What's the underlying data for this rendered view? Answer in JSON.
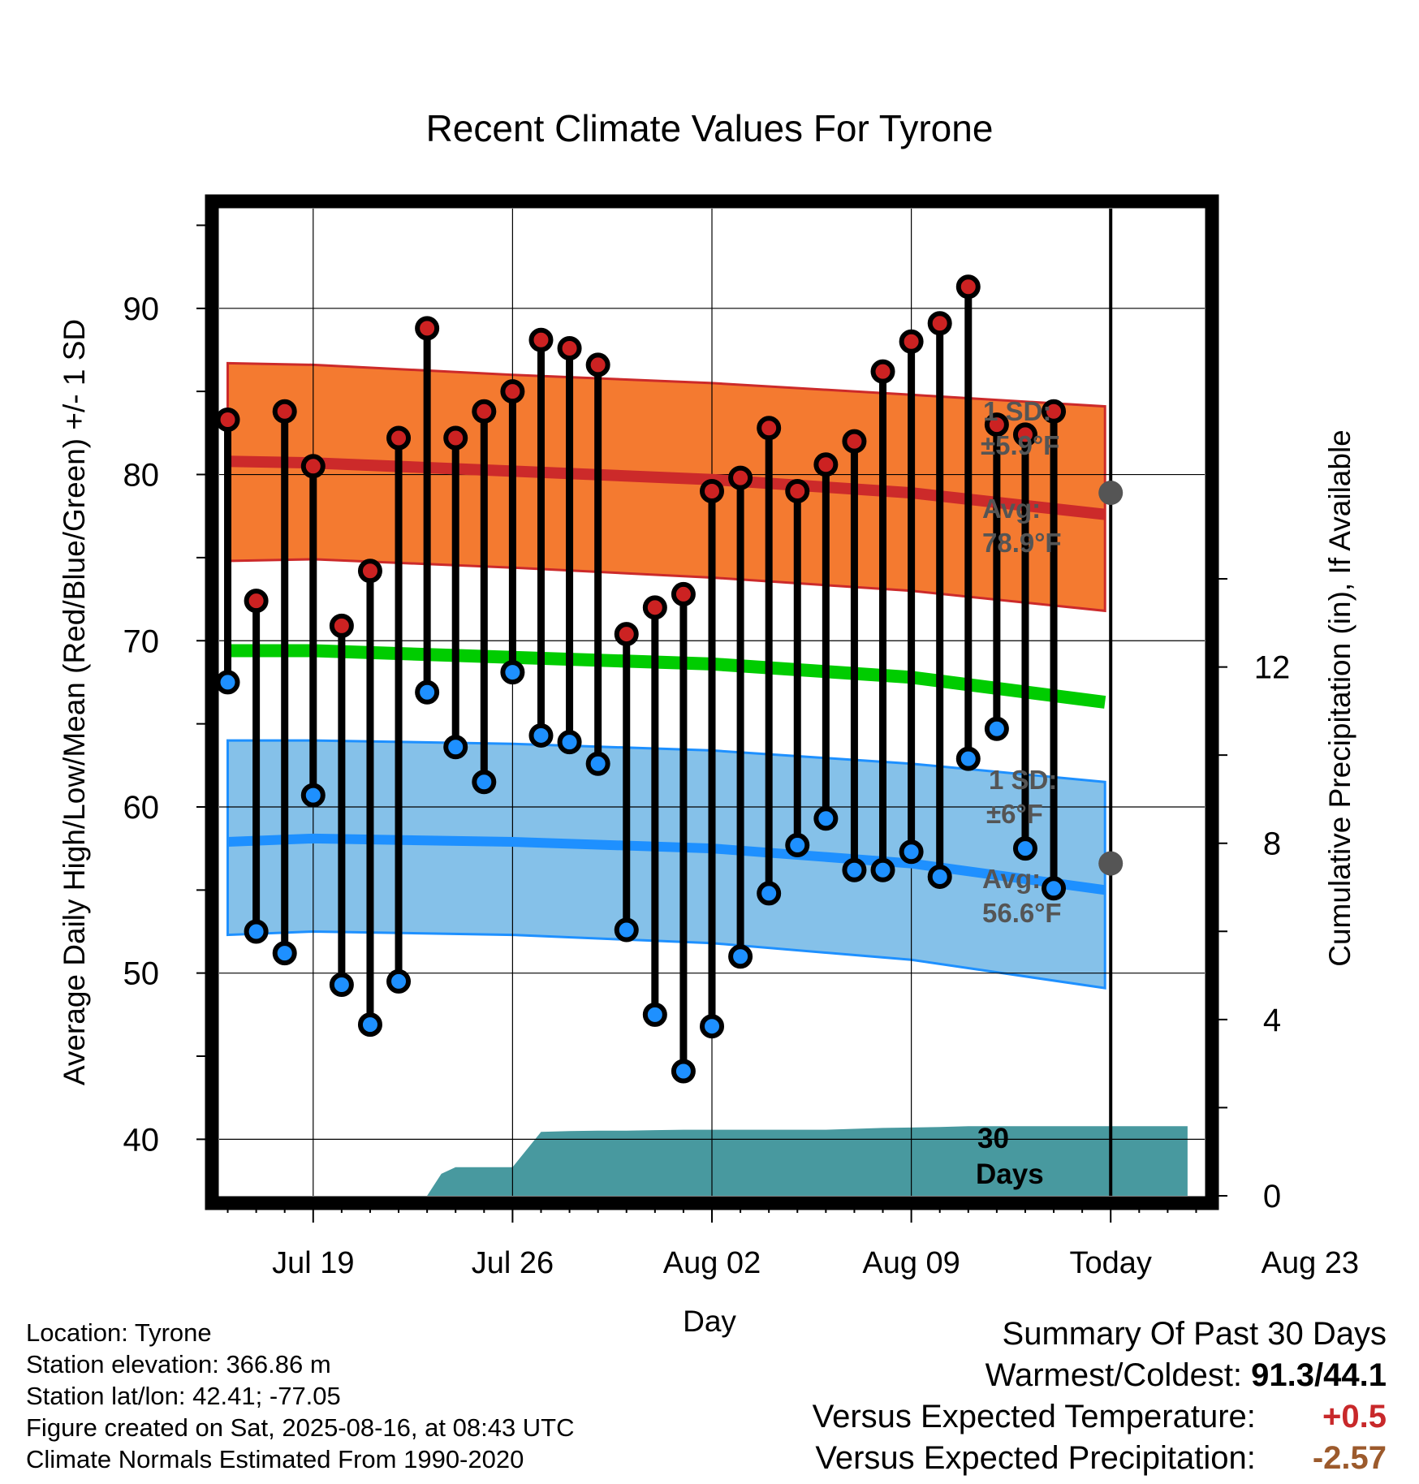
{
  "chart_data": {
    "type": "line",
    "title": "Recent Climate Values For Tyrone",
    "xlabel": "Day",
    "ylabel": "Average Daily High/Low/Mean (Red/Blue/Green) +/- 1 SD",
    "y2label": "Cumulative Precipitation (in), If Available",
    "ylim": [
      36.6,
      96
    ],
    "y_ticks": [
      40,
      50,
      60,
      70,
      80,
      90
    ],
    "y2lim": [
      0,
      22.4
    ],
    "y2_ticks": [
      0,
      4,
      8,
      12
    ],
    "x_tick_labels": [
      "Jul 19",
      "Jul 26",
      "Aug 02",
      "Aug 09",
      "Today",
      "Aug 23"
    ],
    "grid": true,
    "days_label": [
      "30",
      "Days"
    ],
    "normals": {
      "high_avg": [
        80.8,
        80.7,
        80.2,
        79.7,
        78.9,
        77.6
      ],
      "high_upper": [
        86.7,
        86.6,
        86.0,
        85.5,
        84.8,
        84.1
      ],
      "high_lower": [
        74.8,
        74.9,
        74.4,
        73.8,
        73.0,
        71.8
      ],
      "mean_avg": [
        69.4,
        69.4,
        69.0,
        68.6,
        67.8,
        66.3
      ],
      "low_avg": [
        57.9,
        58.1,
        57.9,
        57.5,
        56.6,
        55.0
      ],
      "low_upper": [
        64.0,
        64.0,
        63.8,
        63.4,
        62.6,
        61.5
      ],
      "low_lower": [
        52.3,
        52.5,
        52.3,
        51.8,
        50.8,
        49.1
      ],
      "normal_days": [
        -3,
        0,
        7,
        14,
        21,
        27.8
      ]
    },
    "annotations": {
      "high_sd": [
        "1 SD:",
        "±5.9°F"
      ],
      "high_avg": [
        "Avg:",
        "78.9°F"
      ],
      "low_sd": [
        "1 SD:",
        "±6°F"
      ],
      "low_avg": [
        "Avg:",
        "56.6°F"
      ]
    },
    "today_high_avg": 78.9,
    "today_low_avg": 56.6,
    "daily": {
      "days": [
        16,
        17,
        18,
        19,
        20,
        21,
        22,
        23,
        24,
        25,
        26,
        27,
        28,
        29,
        30,
        31,
        32,
        33,
        34,
        35,
        36,
        37,
        38,
        39,
        40,
        41,
        42,
        43,
        44,
        45
      ],
      "high": [
        83.3,
        72.4,
        83.8,
        80.5,
        70.9,
        74.2,
        82.2,
        88.8,
        82.2,
        83.8,
        85.0,
        88.1,
        87.6,
        86.6,
        70.4,
        72.0,
        72.8,
        79.0,
        79.8,
        82.8,
        79.0,
        80.6,
        82.0,
        86.2,
        88.0,
        89.1,
        91.3,
        83.0,
        82.4,
        83.8
      ],
      "low": [
        67.5,
        52.5,
        51.2,
        60.7,
        49.3,
        46.9,
        49.5,
        66.9,
        63.6,
        61.5,
        68.1,
        64.3,
        63.9,
        62.6,
        52.6,
        47.5,
        44.1,
        46.8,
        51.0,
        54.8,
        57.7,
        59.3,
        56.2,
        56.2,
        57.3,
        55.8,
        62.9,
        64.7,
        57.5,
        55.1
      ]
    },
    "precip": {
      "days": [
        22,
        23,
        23.5,
        24,
        25,
        26,
        27,
        28,
        29,
        30,
        31,
        32,
        33,
        34,
        35,
        36,
        37,
        38,
        39,
        40,
        41,
        42,
        43,
        44,
        45,
        46,
        47,
        48,
        49,
        50
      ],
      "cumulative": [
        0,
        0,
        0.5,
        0.65,
        0.65,
        0.65,
        1.45,
        1.47,
        1.48,
        1.48,
        1.49,
        1.5,
        1.5,
        1.5,
        1.5,
        1.5,
        1.5,
        1.52,
        1.54,
        1.55,
        1.56,
        1.58,
        1.58,
        1.58,
        1.58,
        1.58,
        1.58,
        1.58,
        1.58,
        1.58
      ]
    }
  },
  "footer": {
    "location": "Location: Tyrone",
    "elevation": "Station elevation: 366.86 m",
    "latlon": "Station lat/lon: 42.41; -77.05",
    "created": "Figure created on Sat, 2025-08-16, at 08:43 UTC",
    "normals": "Climate Normals Estimated From 1990-2020"
  },
  "summary": {
    "title": "Summary Of Past 30 Days",
    "warmest_label": "Warmest/Coldest:",
    "warmest_value": "91.3/44.1",
    "temp_label": "Versus Expected Temperature:",
    "temp_value": "+0.5",
    "precip_label": "Versus Expected Precipitation:",
    "precip_value": "-2.57"
  },
  "colors": {
    "high_band": "#f47a30",
    "high_line": "#cc2a2a",
    "low_band": "#85c1e9",
    "low_line": "#1e90ff",
    "mean_line": "#00cc00",
    "precip": "#48999f",
    "high_dot": "#cc2222",
    "low_dot": "#1e90ff",
    "annot": "#555555"
  }
}
